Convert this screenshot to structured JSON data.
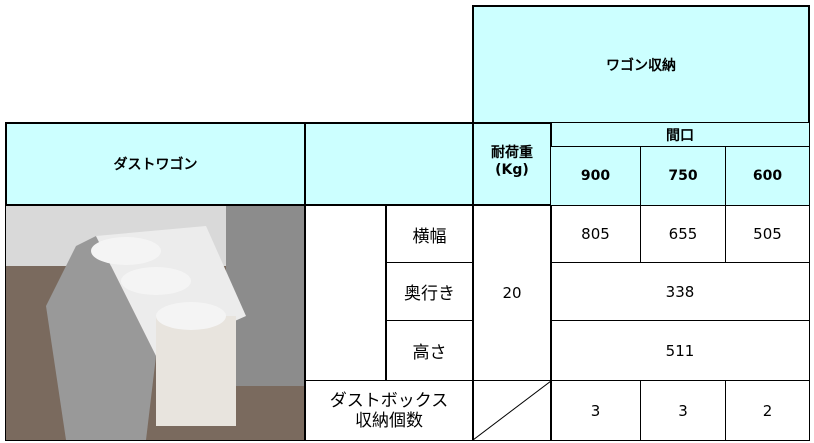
{
  "table": {
    "group_header": "ワゴン収納",
    "frontage_header": "間口",
    "product_header": "ダストワゴン",
    "load_header": [
      "耐荷重",
      "(Kg)"
    ],
    "widths": [
      900,
      750,
      600
    ],
    "rows": [
      {
        "label": "横幅",
        "values": [
          805,
          655,
          505
        ]
      },
      {
        "label": "奥行き",
        "value": 338
      },
      {
        "label": "高さ",
        "value": 511
      }
    ],
    "load_value": 20,
    "box_label": [
      "ダストボックス",
      "収納個数"
    ],
    "box_counts": [
      3,
      3,
      2
    ]
  }
}
